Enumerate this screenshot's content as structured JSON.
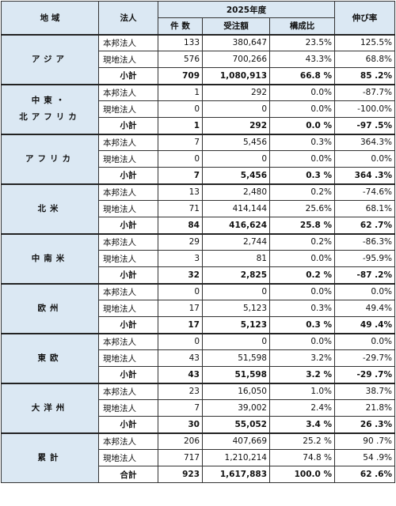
{
  "header": {
    "region": "地 域",
    "type": "法人",
    "year": "2025年度",
    "count": "件 数",
    "amount": "受注額",
    "ratio": "構成比",
    "growth": "伸び率"
  },
  "subtotal_label": "小計",
  "regions": [
    {
      "name": "アジア",
      "rows": [
        {
          "type": "本邦法人",
          "count": "133",
          "amount": "380,647",
          "ratio": "23.5%",
          "growth": "125.5%"
        },
        {
          "type": "現地法人",
          "count": "576",
          "amount": "700,266",
          "ratio": "43.3%",
          "growth": "68.8%"
        }
      ],
      "subtotal": {
        "count": "709",
        "amount": "1,080,913",
        "ratio": "66.8 %",
        "growth": "85 .2%"
      }
    },
    {
      "name": "中東・\n北アフリカ",
      "rows": [
        {
          "type": "本邦法人",
          "count": "1",
          "amount": "292",
          "ratio": "0.0%",
          "growth": "-87.7%"
        },
        {
          "type": "現地法人",
          "count": "0",
          "amount": "0",
          "ratio": "0.0%",
          "growth": "-100.0%"
        }
      ],
      "subtotal": {
        "count": "1",
        "amount": "292",
        "ratio": "0.0 %",
        "growth": "-97 .5%"
      }
    },
    {
      "name": "アフリカ",
      "rows": [
        {
          "type": "本邦法人",
          "count": "7",
          "amount": "5,456",
          "ratio": "0.3%",
          "growth": "364.3%"
        },
        {
          "type": "現地法人",
          "count": "0",
          "amount": "0",
          "ratio": "0.0%",
          "growth": "0.0%"
        }
      ],
      "subtotal": {
        "count": "7",
        "amount": "5,456",
        "ratio": "0.3 %",
        "growth": "364 .3%"
      }
    },
    {
      "name": "北米",
      "rows": [
        {
          "type": "本邦法人",
          "count": "13",
          "amount": "2,480",
          "ratio": "0.2%",
          "growth": "-74.6%"
        },
        {
          "type": "現地法人",
          "count": "71",
          "amount": "414,144",
          "ratio": "25.6%",
          "growth": "68.1%"
        }
      ],
      "subtotal": {
        "count": "84",
        "amount": "416,624",
        "ratio": "25.8 %",
        "growth": "62 .7%"
      }
    },
    {
      "name": "中南米",
      "rows": [
        {
          "type": "本邦法人",
          "count": "29",
          "amount": "2,744",
          "ratio": "0.2%",
          "growth": "-86.3%"
        },
        {
          "type": "現地法人",
          "count": "3",
          "amount": "81",
          "ratio": "0.0%",
          "growth": "-95.9%"
        }
      ],
      "subtotal": {
        "count": "32",
        "amount": "2,825",
        "ratio": "0.2 %",
        "growth": "-87 .2%"
      }
    },
    {
      "name": "欧州",
      "rows": [
        {
          "type": "本邦法人",
          "count": "0",
          "amount": "0",
          "ratio": "0.0%",
          "growth": "0.0%"
        },
        {
          "type": "現地法人",
          "count": "17",
          "amount": "5,123",
          "ratio": "0.3%",
          "growth": "49.4%"
        }
      ],
      "subtotal": {
        "count": "17",
        "amount": "5,123",
        "ratio": "0.3 %",
        "growth": "49 .4%"
      }
    },
    {
      "name": "東欧",
      "rows": [
        {
          "type": "本邦法人",
          "count": "0",
          "amount": "0",
          "ratio": "0.0%",
          "growth": "0.0%"
        },
        {
          "type": "現地法人",
          "count": "43",
          "amount": "51,598",
          "ratio": "3.2%",
          "growth": "-29.7%"
        }
      ],
      "subtotal": {
        "count": "43",
        "amount": "51,598",
        "ratio": "3.2 %",
        "growth": "-29 .7%"
      }
    },
    {
      "name": "大洋州",
      "rows": [
        {
          "type": "本邦法人",
          "count": "23",
          "amount": "16,050",
          "ratio": "1.0%",
          "growth": "38.7%"
        },
        {
          "type": "現地法人",
          "count": "7",
          "amount": "39,002",
          "ratio": "2.4%",
          "growth": "21.8%"
        }
      ],
      "subtotal": {
        "count": "30",
        "amount": "55,052",
        "ratio": "3.4 %",
        "growth": "26 .3%"
      }
    }
  ],
  "cumulative": {
    "name": "累計",
    "rows": [
      {
        "type": "本邦法人",
        "count": "206",
        "amount": "407,669",
        "ratio": "25.2 %",
        "growth": "90 .7%"
      },
      {
        "type": "現地法人",
        "count": "717",
        "amount": "1,210,214",
        "ratio": "74.8 %",
        "growth": "54 .9%"
      }
    ],
    "total": {
      "label": "合計",
      "count": "923",
      "amount": "1,617,883",
      "ratio": "100.0 %",
      "growth": "62 .6%"
    }
  },
  "colors": {
    "header_bg": "#dbe8f3",
    "border": "#333333"
  }
}
